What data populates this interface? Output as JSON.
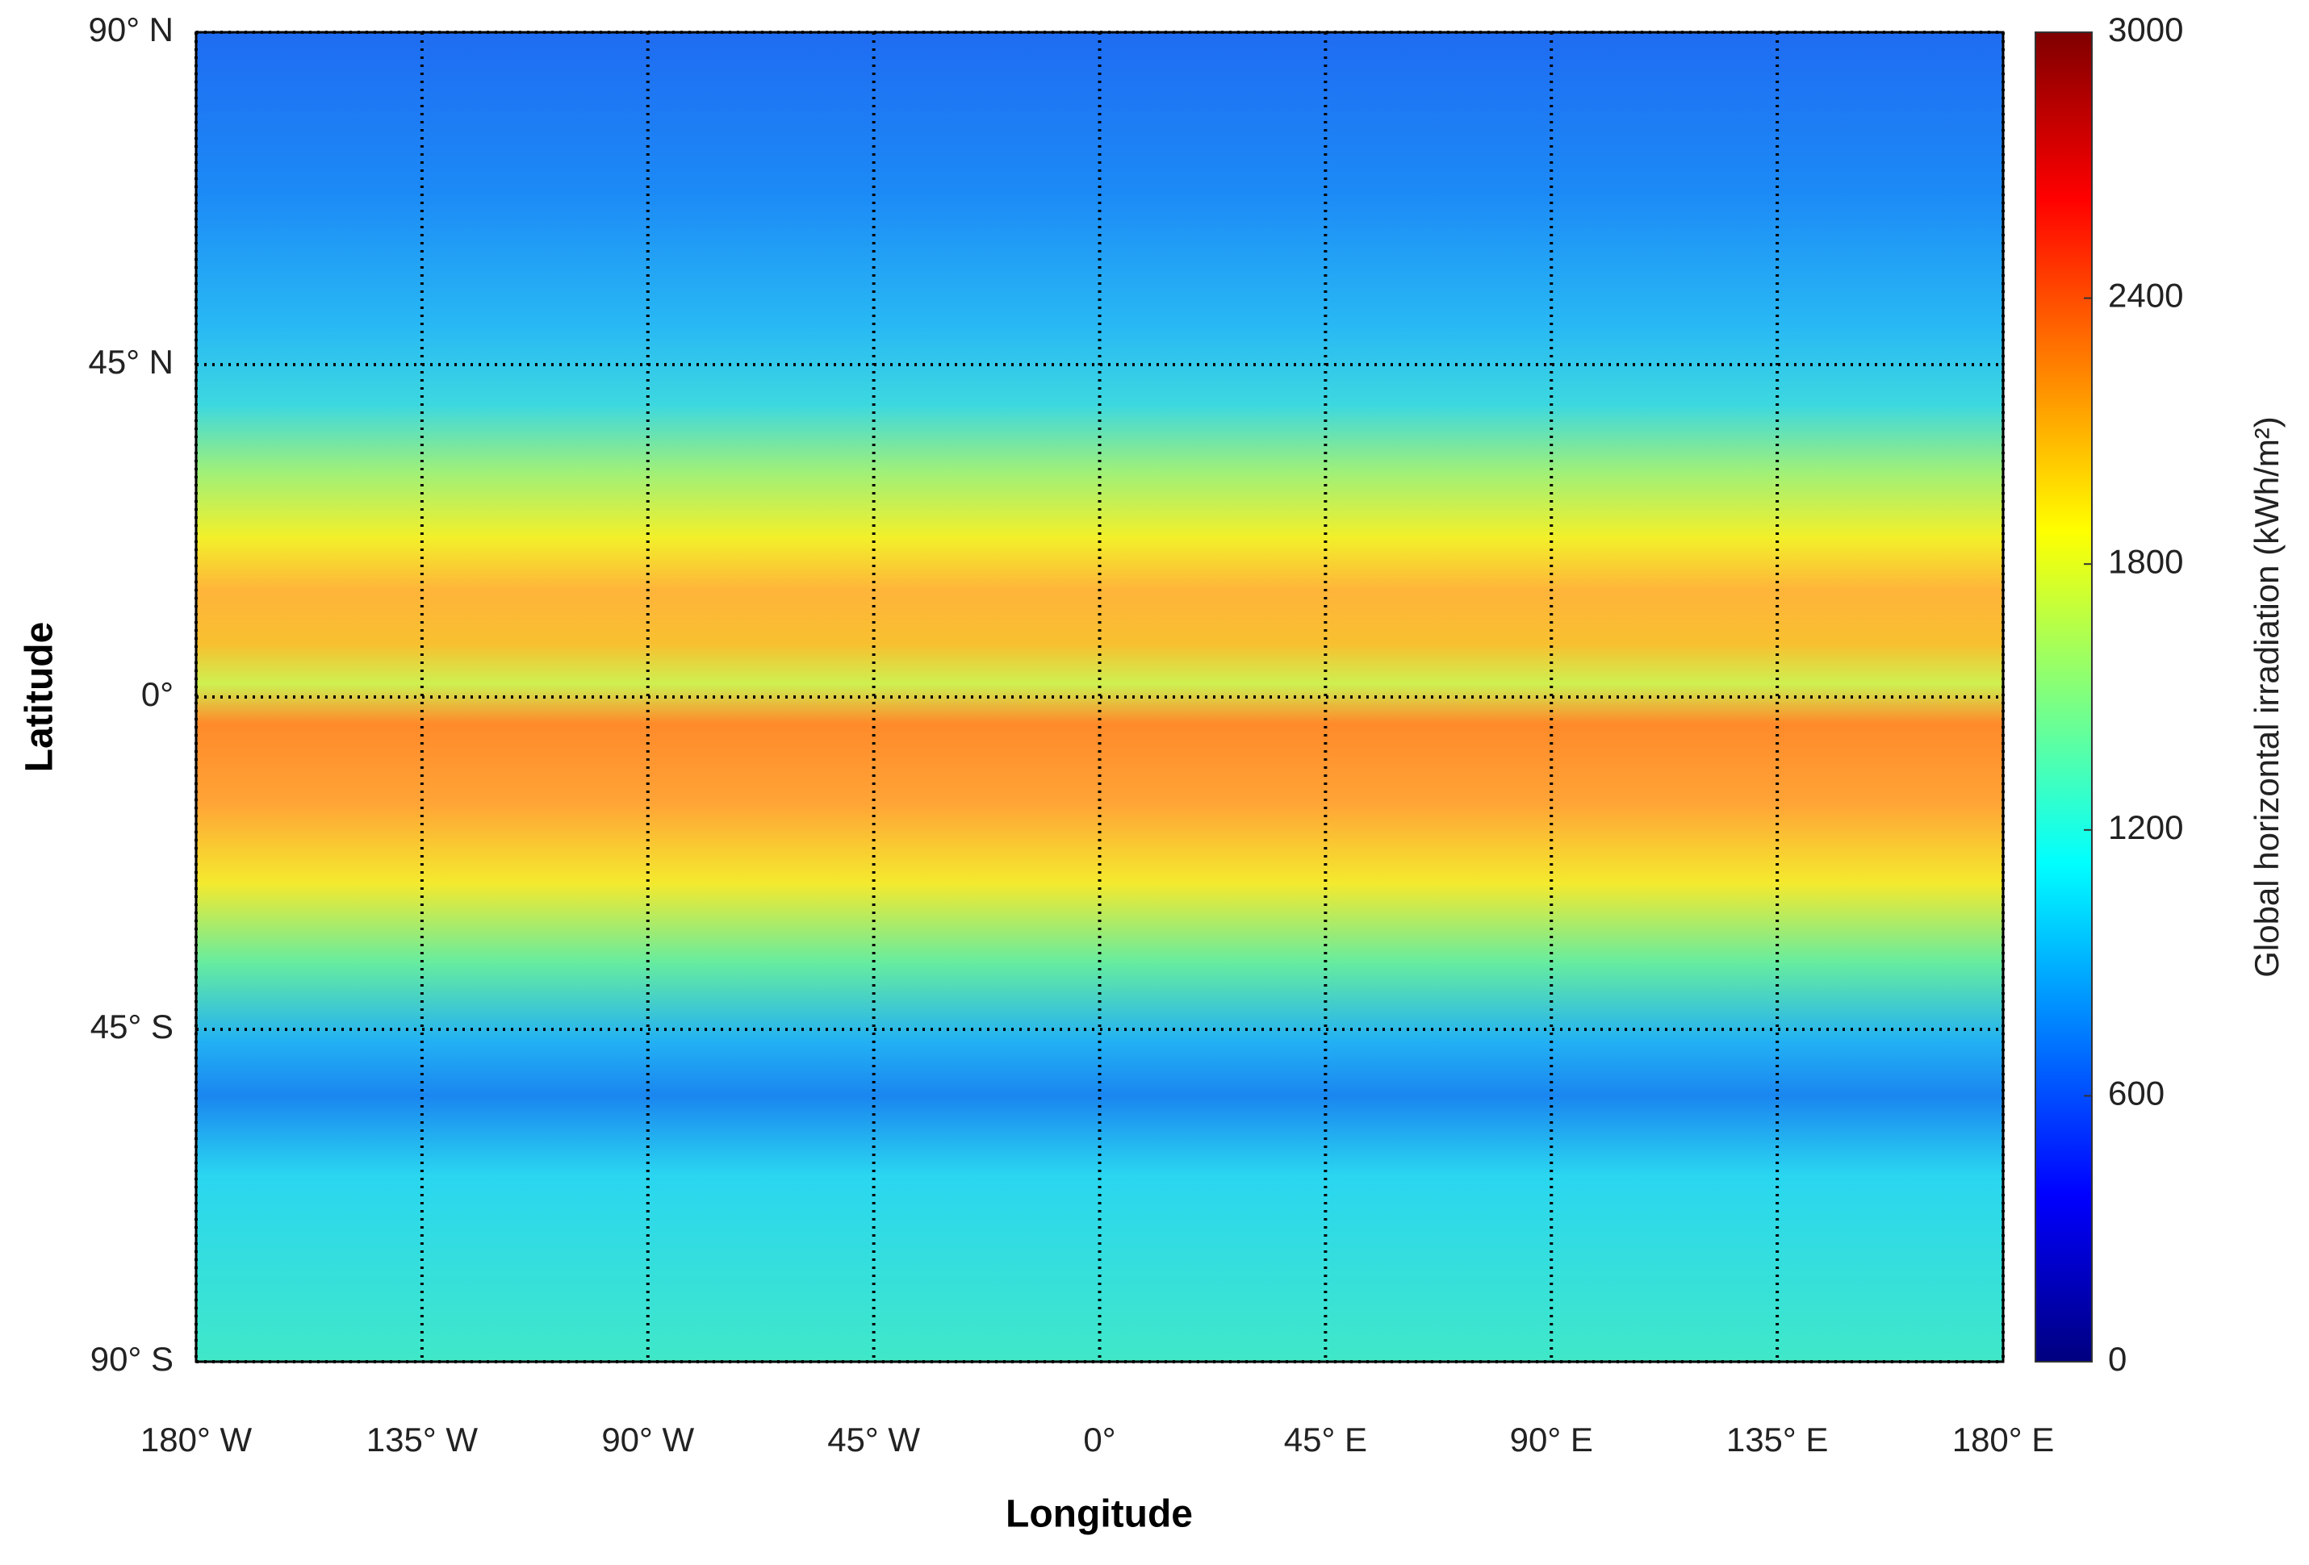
{
  "chart_data": {
    "type": "map",
    "xlabel": "Longitude",
    "ylabel": "Latitude",
    "xlim": [
      -180,
      180
    ],
    "ylim": [
      -90,
      90
    ],
    "xticks": [
      {
        "value": -180,
        "label": "180° W"
      },
      {
        "value": -135,
        "label": "135° W"
      },
      {
        "value": -90,
        "label": "90° W"
      },
      {
        "value": -45,
        "label": "45° W"
      },
      {
        "value": 0,
        "label": "0°"
      },
      {
        "value": 45,
        "label": "45° E"
      },
      {
        "value": 90,
        "label": "90° E"
      },
      {
        "value": 135,
        "label": "135° E"
      },
      {
        "value": 180,
        "label": "180° E"
      }
    ],
    "yticks": [
      {
        "value": 90,
        "label": "90° N"
      },
      {
        "value": 45,
        "label": "45° N"
      },
      {
        "value": 0,
        "label": "0°"
      },
      {
        "value": -45,
        "label": "45° S"
      },
      {
        "value": -90,
        "label": "90° S"
      }
    ],
    "grid": true,
    "colorbar": {
      "label": "Global horizontal irradiation (kWh/m²)",
      "clim": [
        0,
        3000
      ],
      "ticks": [
        0,
        600,
        1200,
        1800,
        2400,
        3000
      ],
      "colormap": [
        "#00007f",
        "#0000ff",
        "#007fff",
        "#00ffff",
        "#7fff7f",
        "#ffff00",
        "#ff7f00",
        "#ff0000",
        "#7f0000"
      ]
    }
  }
}
